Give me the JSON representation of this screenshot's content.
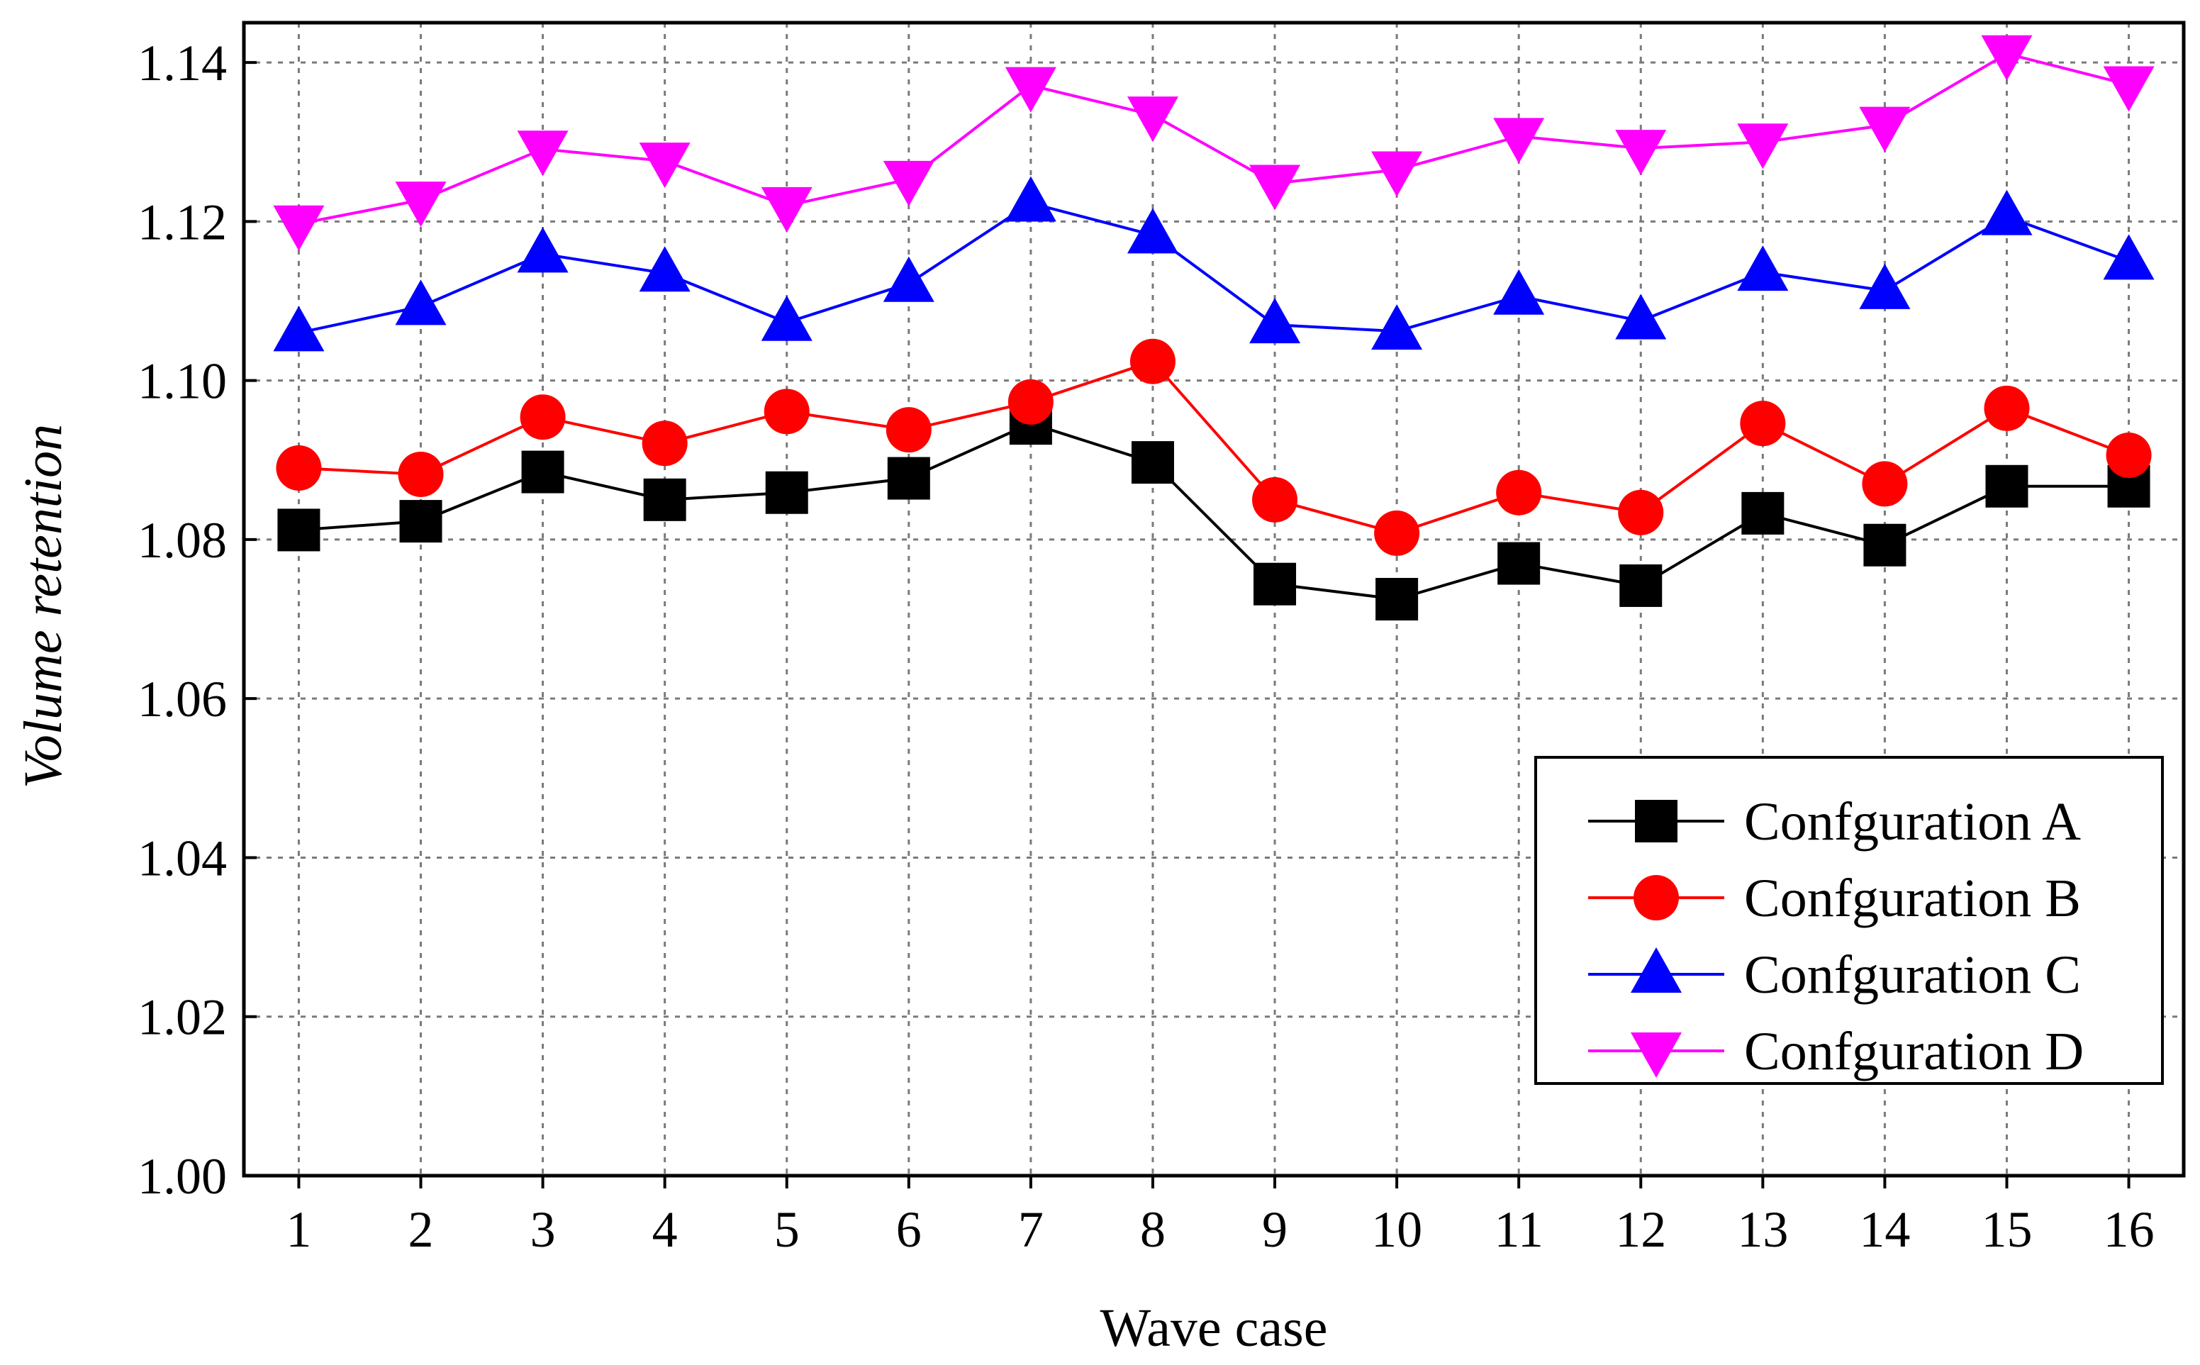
{
  "chart_data": {
    "type": "line",
    "title": "",
    "xlabel": "Wave case",
    "ylabel": "Volume retention",
    "x": [
      1,
      2,
      3,
      4,
      5,
      6,
      7,
      8,
      9,
      10,
      11,
      12,
      13,
      14,
      15,
      16
    ],
    "xlim": [
      0.55,
      16.45
    ],
    "ylim": [
      1.0,
      1.145
    ],
    "y_ticks": [
      "1.00",
      "1.02",
      "1.04",
      "1.06",
      "1.08",
      "1.10",
      "1.12",
      "1.14"
    ],
    "x_ticks": [
      "1",
      "2",
      "3",
      "4",
      "5",
      "6",
      "7",
      "8",
      "9",
      "10",
      "11",
      "12",
      "13",
      "14",
      "15",
      "16"
    ],
    "grid": true,
    "legend_position": "bottom-right",
    "series": [
      {
        "name": "Confguration A",
        "color": "#000000",
        "marker": "square",
        "values": [
          1.0812,
          1.0823,
          1.0885,
          1.085,
          1.0859,
          1.0877,
          1.0946,
          1.0897,
          1.0744,
          1.0725,
          1.077,
          1.0742,
          1.0833,
          1.0793,
          1.0867,
          1.0867
        ]
      },
      {
        "name": "Confguration B",
        "color": "#ff0000",
        "marker": "circle",
        "values": [
          1.089,
          1.0882,
          1.0954,
          1.0921,
          1.0961,
          1.0938,
          1.0973,
          1.1024,
          1.085,
          1.0808,
          1.0859,
          1.0834,
          1.0946,
          1.087,
          1.0965,
          1.0906
        ]
      },
      {
        "name": "Confguration C",
        "color": "#0000ff",
        "marker": "triangle-up",
        "values": [
          1.106,
          1.1093,
          1.1159,
          1.1135,
          1.1073,
          1.1122,
          1.1223,
          1.1183,
          1.107,
          1.1062,
          1.1106,
          1.1075,
          1.1136,
          1.1113,
          1.1206,
          1.115
        ]
      },
      {
        "name": "Confguration D",
        "color": "#ff00ff",
        "marker": "triangle-down",
        "values": [
          1.1197,
          1.1227,
          1.1291,
          1.1276,
          1.122,
          1.1253,
          1.1371,
          1.1334,
          1.1248,
          1.1265,
          1.1307,
          1.1292,
          1.13,
          1.1321,
          1.1411,
          1.1372
        ]
      }
    ]
  }
}
